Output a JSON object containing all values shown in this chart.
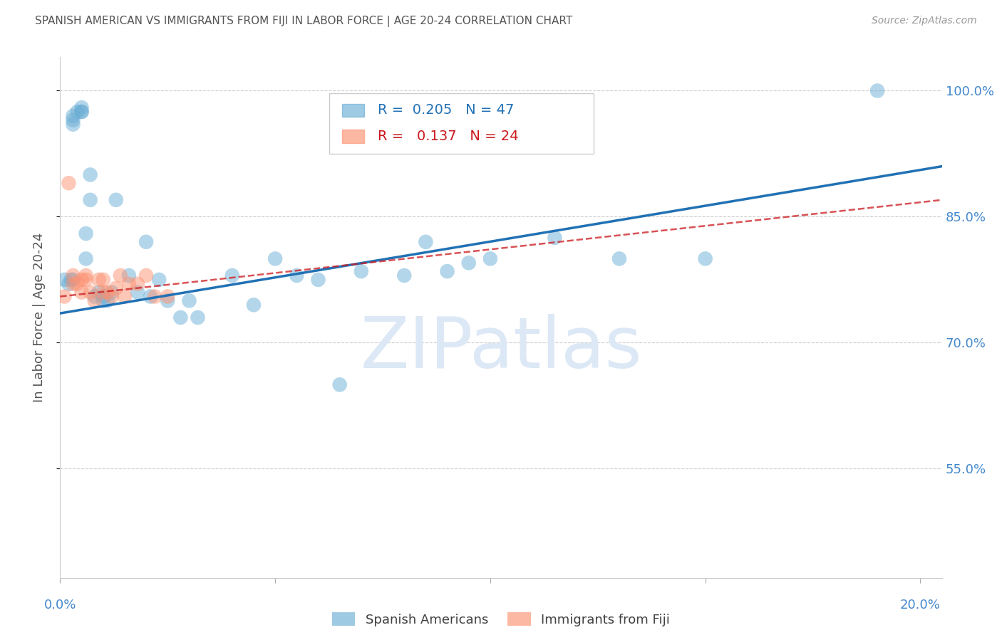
{
  "title": "SPANISH AMERICAN VS IMMIGRANTS FROM FIJI IN LABOR FORCE | AGE 20-24 CORRELATION CHART",
  "source": "Source: ZipAtlas.com",
  "ylabel": "In Labor Force | Age 20-24",
  "ytick_labels": [
    "100.0%",
    "85.0%",
    "70.0%",
    "55.0%"
  ],
  "ytick_values": [
    1.0,
    0.85,
    0.7,
    0.55
  ],
  "xlim": [
    0.0,
    0.205
  ],
  "ylim": [
    0.42,
    1.04
  ],
  "blue_R": 0.205,
  "blue_N": 47,
  "pink_R": 0.137,
  "pink_N": 24,
  "legend_label_blue": "Spanish Americans",
  "legend_label_pink": "Immigrants from Fiji",
  "blue_color": "#6baed6",
  "pink_color": "#fc9272",
  "blue_line_color": "#2171b5",
  "pink_line_color": "#cb181d",
  "grid_color": "#cccccc",
  "title_color": "#555555",
  "axis_label_color": "#555555",
  "tick_label_color": "#4488cc",
  "watermark_text": "ZIPatlas",
  "watermark_color": "#dce8f5",
  "blue_x": [
    0.001,
    0.002,
    0.0025,
    0.003,
    0.003,
    0.003,
    0.004,
    0.005,
    0.005,
    0.005,
    0.006,
    0.006,
    0.007,
    0.007,
    0.008,
    0.009,
    0.01,
    0.01,
    0.011,
    0.012,
    0.013,
    0.016,
    0.018,
    0.02,
    0.021,
    0.023,
    0.025,
    0.028,
    0.03,
    0.032,
    0.04,
    0.045,
    0.05,
    0.055,
    0.06,
    0.065,
    0.07,
    0.08,
    0.085,
    0.09,
    0.095,
    0.1,
    0.115,
    0.13,
    0.15,
    0.19,
    0.003
  ],
  "blue_y": [
    0.775,
    0.77,
    0.775,
    0.96,
    0.965,
    0.97,
    0.975,
    0.975,
    0.975,
    0.98,
    0.83,
    0.8,
    0.9,
    0.87,
    0.755,
    0.76,
    0.75,
    0.755,
    0.75,
    0.76,
    0.87,
    0.78,
    0.76,
    0.82,
    0.755,
    0.775,
    0.75,
    0.73,
    0.75,
    0.73,
    0.78,
    0.745,
    0.8,
    0.78,
    0.775,
    0.65,
    0.785,
    0.78,
    0.82,
    0.785,
    0.795,
    0.8,
    0.825,
    0.8,
    0.8,
    1.0,
    0.775
  ],
  "pink_x": [
    0.001,
    0.002,
    0.003,
    0.003,
    0.004,
    0.005,
    0.005,
    0.006,
    0.006,
    0.007,
    0.008,
    0.009,
    0.01,
    0.01,
    0.011,
    0.012,
    0.013,
    0.014,
    0.015,
    0.016,
    0.018,
    0.02,
    0.022,
    0.025
  ],
  "pink_y": [
    0.755,
    0.89,
    0.78,
    0.77,
    0.77,
    0.775,
    0.76,
    0.78,
    0.775,
    0.76,
    0.75,
    0.775,
    0.775,
    0.76,
    0.76,
    0.755,
    0.765,
    0.78,
    0.755,
    0.77,
    0.77,
    0.78,
    0.755,
    0.755
  ],
  "blue_trendline_x0": 0.0,
  "blue_trendline_y0": 0.735,
  "blue_trendline_x1": 0.205,
  "blue_trendline_y1": 0.91,
  "pink_trendline_x0": 0.0,
  "pink_trendline_y0": 0.755,
  "pink_trendline_x1": 0.205,
  "pink_trendline_y1": 0.87
}
